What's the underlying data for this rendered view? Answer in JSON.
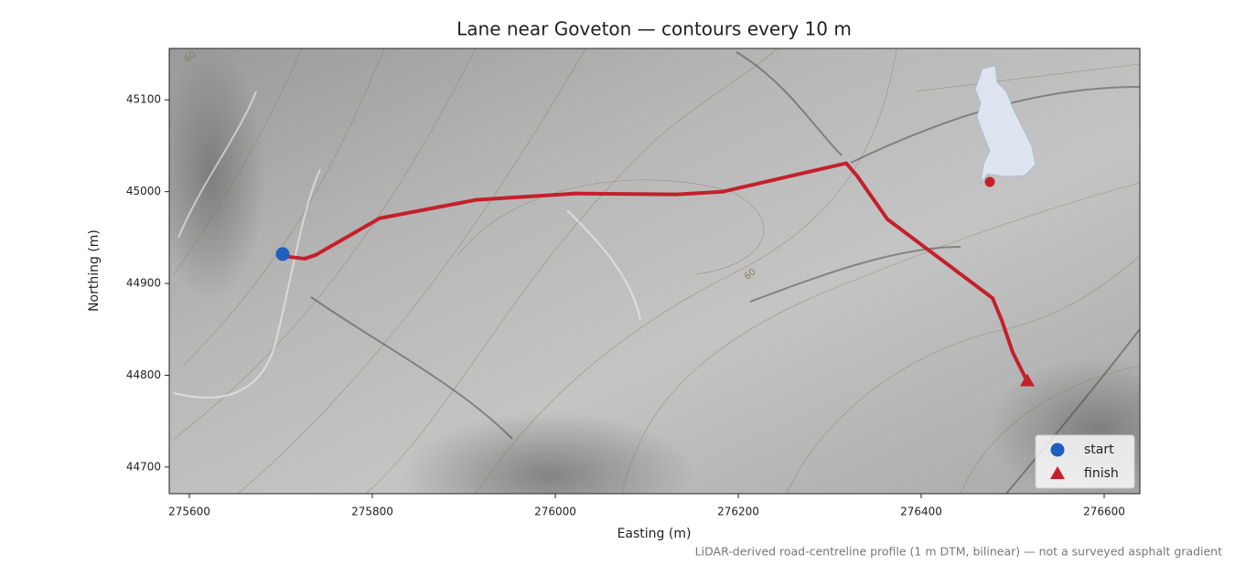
{
  "chart_data": {
    "type": "line",
    "title": "Lane near Goveton — contours every 10 m",
    "xlabel": "Easting (m)",
    "ylabel": "Northing (m)",
    "footnote": "LiDAR-derived road-centreline profile (1 m DTM, bilinear) — not a surveyed asphalt gradient",
    "xlim": [
      275578,
      276639
    ],
    "ylim": [
      44671,
      45156
    ],
    "xticks": [
      275600,
      275800,
      276000,
      276200,
      276400,
      276600
    ],
    "yticks": [
      44700,
      44800,
      44900,
      45000,
      45100
    ],
    "legend": "lower right",
    "series": [
      {
        "color": "#c4202b",
        "x": [
          275709,
          275726,
          275738,
          275808,
          275913,
          276023,
          276133,
          276183,
          276318,
          276330,
          276363,
          276478,
          276488,
          276500,
          276516
        ],
        "y": [
          44929,
          44927,
          44931,
          44971,
          44991,
          44998,
          44997,
          45000,
          45031,
          45017,
          44970,
          44884,
          44860,
          44825,
          44793
        ]
      },
      {
        "name": "start",
        "marker": "circle",
        "color": "#1f5fbf",
        "x": [
          275702
        ],
        "y": [
          44932
        ]
      },
      {
        "name": "finish",
        "marker": "triangle",
        "color": "#c4202b",
        "x": [
          276516
        ],
        "y": [
          44794
        ]
      }
    ],
    "contour_labels": [
      {
        "text": "60",
        "x": 275601,
        "y": 45147
      },
      {
        "text": "60",
        "x": 276213,
        "y": 44910
      }
    ]
  }
}
